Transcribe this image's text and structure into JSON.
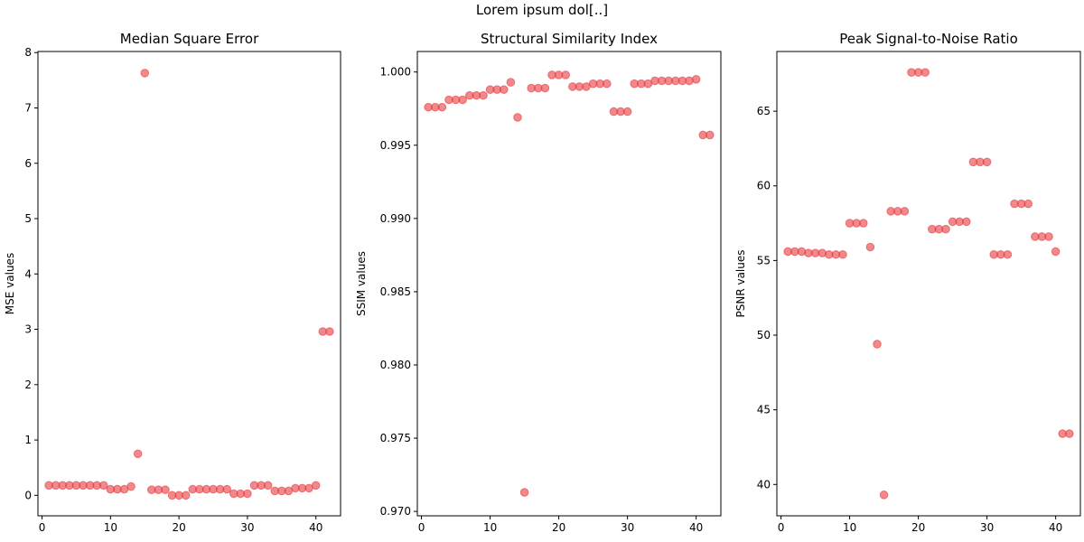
{
  "figure": {
    "suptitle": "Lorem ipsum dol[..]"
  },
  "chart_data": [
    {
      "type": "scatter",
      "title": "Median Square Error",
      "xlabel": "",
      "ylabel": "MSE values",
      "xlim": [
        -0.6,
        43.6
      ],
      "ylim": [
        -0.37,
        8.02
      ],
      "xticks": [
        0,
        10,
        20,
        30,
        40
      ],
      "yticks": [
        0,
        1,
        2,
        3,
        4,
        5,
        6,
        7,
        8
      ],
      "ytick_labels": [
        "0",
        "1",
        "2",
        "3",
        "4",
        "5",
        "6",
        "7",
        "8"
      ],
      "marker_color": "#e8393e",
      "marker_alpha": 0.6,
      "grid": false,
      "x": [
        1,
        2,
        3,
        4,
        5,
        6,
        7,
        8,
        9,
        10,
        11,
        12,
        13,
        14,
        15,
        16,
        17,
        18,
        19,
        20,
        21,
        22,
        23,
        24,
        25,
        26,
        27,
        28,
        29,
        30,
        31,
        32,
        33,
        34,
        35,
        36,
        37,
        38,
        39,
        40,
        41,
        42
      ],
      "y": [
        0.18,
        0.18,
        0.18,
        0.18,
        0.18,
        0.18,
        0.18,
        0.18,
        0.18,
        0.11,
        0.11,
        0.11,
        0.16,
        0.75,
        7.63,
        0.1,
        0.1,
        0.1,
        0.0,
        0.0,
        0.0,
        0.11,
        0.11,
        0.11,
        0.11,
        0.11,
        0.11,
        0.03,
        0.03,
        0.03,
        0.18,
        0.18,
        0.18,
        0.08,
        0.08,
        0.08,
        0.13,
        0.13,
        0.13,
        0.18,
        2.96,
        2.96
      ]
    },
    {
      "type": "scatter",
      "title": "Structural Similarity Index",
      "xlabel": "",
      "ylabel": "SSIM values",
      "xlim": [
        -0.6,
        43.6
      ],
      "ylim": [
        0.9697,
        1.0014
      ],
      "xticks": [
        0,
        10,
        20,
        30,
        40
      ],
      "yticks": [
        0.97,
        0.975,
        0.98,
        0.985,
        0.99,
        0.995,
        1.0
      ],
      "ytick_labels": [
        "0.970",
        "0.975",
        "0.980",
        "0.985",
        "0.990",
        "0.995",
        "1.000"
      ],
      "marker_color": "#e8393e",
      "marker_alpha": 0.6,
      "grid": false,
      "x": [
        1,
        2,
        3,
        4,
        5,
        6,
        7,
        8,
        9,
        10,
        11,
        12,
        13,
        14,
        15,
        16,
        17,
        18,
        19,
        20,
        21,
        22,
        23,
        24,
        25,
        26,
        27,
        28,
        29,
        30,
        31,
        32,
        33,
        34,
        35,
        36,
        37,
        38,
        39,
        40,
        41,
        42
      ],
      "y": [
        0.9976,
        0.9976,
        0.9976,
        0.9981,
        0.9981,
        0.9981,
        0.9984,
        0.9984,
        0.9984,
        0.9988,
        0.9988,
        0.9988,
        0.9993,
        0.9969,
        0.9713,
        0.9989,
        0.9989,
        0.9989,
        0.9998,
        0.9998,
        0.9998,
        0.999,
        0.999,
        0.999,
        0.9992,
        0.9992,
        0.9992,
        0.9973,
        0.9973,
        0.9973,
        0.9992,
        0.9992,
        0.9992,
        0.9994,
        0.9994,
        0.9994,
        0.9994,
        0.9994,
        0.9994,
        0.9995,
        0.9957,
        0.9957
      ]
    },
    {
      "type": "scatter",
      "title": "Peak Signal-to-Noise Ratio",
      "xlabel": "",
      "ylabel": "PSNR values",
      "xlim": [
        -0.6,
        43.6
      ],
      "ylim": [
        37.9,
        69.0
      ],
      "xticks": [
        0,
        10,
        20,
        30,
        40
      ],
      "yticks": [
        40,
        45,
        50,
        55,
        60,
        65
      ],
      "ytick_labels": [
        "40",
        "45",
        "50",
        "55",
        "60",
        "65"
      ],
      "marker_color": "#e8393e",
      "marker_alpha": 0.6,
      "grid": false,
      "x": [
        1,
        2,
        3,
        4,
        5,
        6,
        7,
        8,
        9,
        10,
        11,
        12,
        13,
        14,
        15,
        16,
        17,
        18,
        19,
        20,
        21,
        22,
        23,
        24,
        25,
        26,
        27,
        28,
        29,
        30,
        31,
        32,
        33,
        34,
        35,
        36,
        37,
        38,
        39,
        40,
        41,
        42
      ],
      "y": [
        55.6,
        55.6,
        55.6,
        55.5,
        55.5,
        55.5,
        55.4,
        55.4,
        55.4,
        57.5,
        57.5,
        57.5,
        55.9,
        49.4,
        39.3,
        58.3,
        58.3,
        58.3,
        67.6,
        67.6,
        67.6,
        57.1,
        57.1,
        57.1,
        57.6,
        57.6,
        57.6,
        61.6,
        61.6,
        61.6,
        55.4,
        55.4,
        55.4,
        58.8,
        58.8,
        58.8,
        56.6,
        56.6,
        56.6,
        55.6,
        43.4,
        43.4
      ]
    }
  ]
}
